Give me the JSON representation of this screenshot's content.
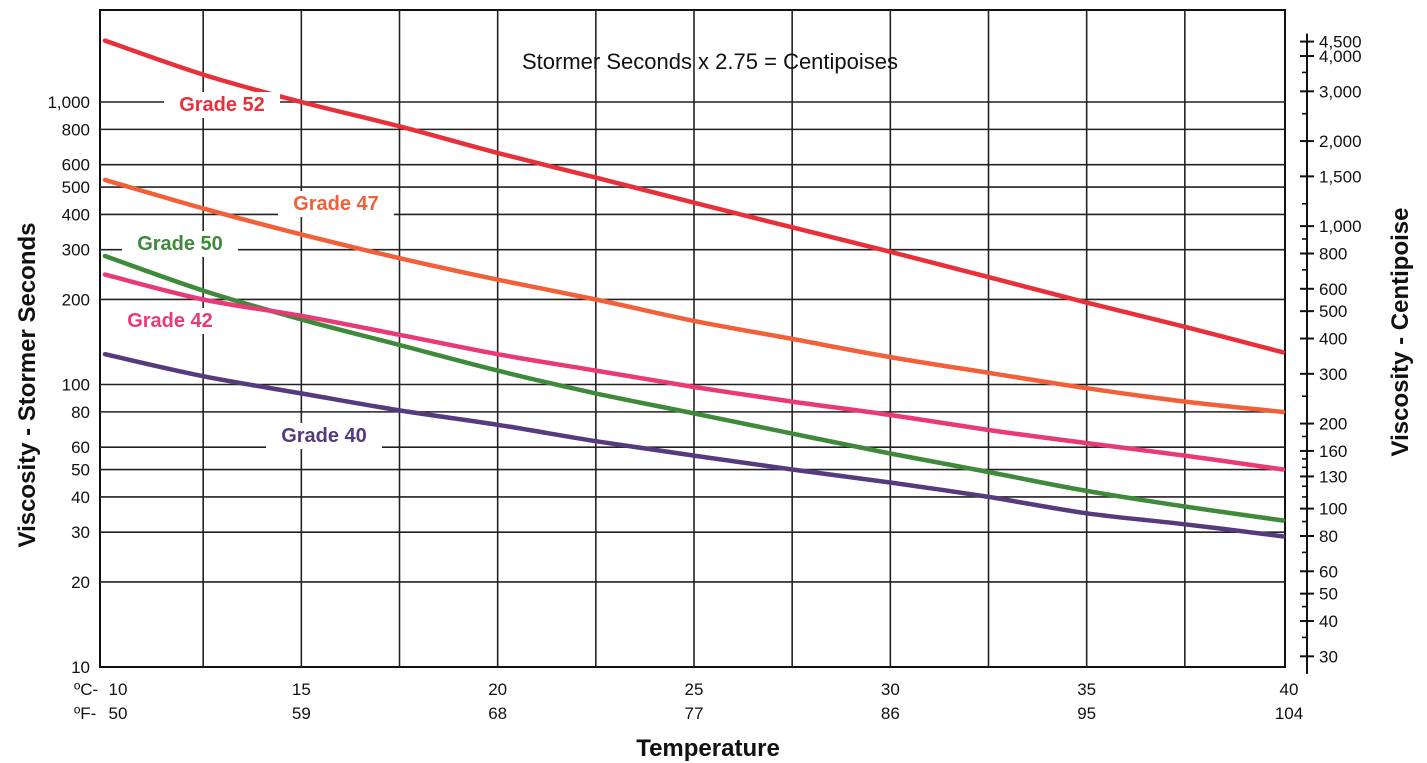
{
  "chart_data": {
    "type": "line",
    "annotation": "Stormer Seconds x 2.75 = Centipoises",
    "xlabel": "Temperature",
    "ylabel": "Viscosity - Stormer Seconds",
    "y2label": "Viscosity - Centipoise",
    "xlim": [
      10,
      40
    ],
    "ylim": [
      10,
      5000
    ],
    "yscale": "log",
    "grid": true,
    "x_celsius_prefix": "ºC-",
    "x_fahrenheit_prefix": "ºF-",
    "x_ticks_celsius": [
      "10",
      "15",
      "20",
      "25",
      "30",
      "35",
      "40"
    ],
    "x_ticks_fahrenheit": [
      "50",
      "59",
      "68",
      "77",
      "86",
      "95",
      "104"
    ],
    "y_ticks": [
      {
        "value": 1000,
        "label": "1,000"
      },
      {
        "value": 800,
        "label": "800"
      },
      {
        "value": 600,
        "label": "600"
      },
      {
        "value": 500,
        "label": "500"
      },
      {
        "value": 400,
        "label": "400"
      },
      {
        "value": 300,
        "label": "300"
      },
      {
        "value": 200,
        "label": "200"
      },
      {
        "value": 100,
        "label": "100"
      },
      {
        "value": 80,
        "label": "80"
      },
      {
        "value": 60,
        "label": "60"
      },
      {
        "value": 50,
        "label": "50"
      },
      {
        "value": 40,
        "label": "40"
      },
      {
        "value": 30,
        "label": "30"
      },
      {
        "value": 20,
        "label": "20"
      },
      {
        "value": 10,
        "label": "10"
      }
    ],
    "y2_ticks": [
      {
        "value": 4500,
        "label": "4,500"
      },
      {
        "value": 4000,
        "label": "4,000"
      },
      {
        "value": 3000,
        "label": "3,000"
      },
      {
        "value": 2000,
        "label": "2,000"
      },
      {
        "value": 1500,
        "label": "1,500"
      },
      {
        "value": 1000,
        "label": "1,000"
      },
      {
        "value": 800,
        "label": "800"
      },
      {
        "value": 600,
        "label": "600"
      },
      {
        "value": 500,
        "label": "500"
      },
      {
        "value": 400,
        "label": "400"
      },
      {
        "value": 300,
        "label": "300"
      },
      {
        "value": 200,
        "label": "200"
      },
      {
        "value": 160,
        "label": "160"
      },
      {
        "value": 130,
        "label": "130"
      },
      {
        "value": 100,
        "label": "100"
      },
      {
        "value": 80,
        "label": "80"
      },
      {
        "value": 60,
        "label": "60"
      },
      {
        "value": 50,
        "label": "50"
      },
      {
        "value": 40,
        "label": "40"
      },
      {
        "value": 30,
        "label": "30"
      }
    ],
    "x": [
      10,
      12.5,
      15,
      17.5,
      20,
      22.5,
      25,
      27.5,
      30,
      32.5,
      35,
      37.5,
      40
    ],
    "series": [
      {
        "name": "Grade 52",
        "color": "#e8303a",
        "values": [
          1650,
          1250,
          1000,
          820,
          660,
          540,
          440,
          360,
          295,
          240,
          195,
          160,
          130
        ]
      },
      {
        "name": "Grade 47",
        "color": "#f26039",
        "values": [
          530,
          420,
          340,
          280,
          235,
          200,
          168,
          145,
          125,
          110,
          97,
          87,
          80
        ]
      },
      {
        "name": "Grade 50",
        "color": "#3f8a3a",
        "values": [
          285,
          215,
          170,
          138,
          112,
          93,
          79,
          67,
          57,
          49,
          42,
          37,
          33
        ]
      },
      {
        "name": "Grade 42",
        "color": "#e83a78",
        "values": [
          245,
          200,
          175,
          150,
          128,
          112,
          98,
          87,
          78,
          69,
          62,
          56,
          50
        ]
      },
      {
        "name": "Grade 40",
        "color": "#553a7e",
        "values": [
          128,
          107,
          93,
          81,
          72,
          63,
          56,
          50,
          45,
          40,
          35,
          32,
          29
        ]
      }
    ]
  }
}
